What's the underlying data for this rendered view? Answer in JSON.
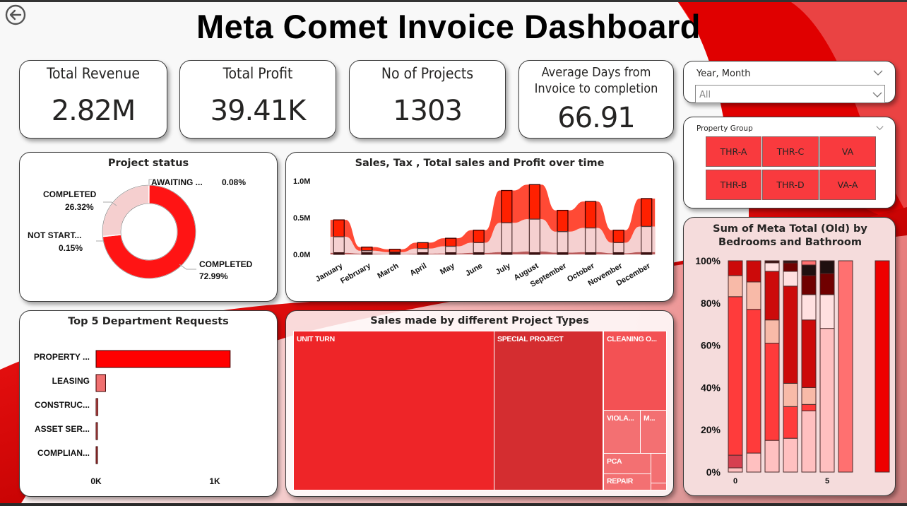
{
  "title": "Meta Comet Invoice Dashboard",
  "icons": {
    "back": "back-arrow-circle-icon",
    "chevron": "chevron-down-icon"
  },
  "colors": {
    "accent": "#ff0000",
    "dark_red": "#c00000",
    "light_pink": "#f5d0d0"
  },
  "kpis": [
    {
      "label": "Total Revenue",
      "value": "2.82M"
    },
    {
      "label": "Total Profit",
      "value": "39.41K"
    },
    {
      "label": "No of Projects",
      "value": "1303"
    },
    {
      "label_line1": "Average Days from",
      "label_line2": "Invoice to completion",
      "value": "66.91"
    }
  ],
  "slicers": {
    "year_month": {
      "title": "Year, Month",
      "value": "All"
    },
    "property_group": {
      "title": "Property Group",
      "tiles": [
        "THR-A",
        "THR-C",
        "VA",
        "THR-B",
        "THR-D",
        "VA-A"
      ]
    }
  },
  "chart_data": [
    {
      "type": "pie",
      "title": "Project status",
      "donut": true,
      "slices": [
        {
          "label": "COMPLETED",
          "value": 72.99,
          "display": "72.99%",
          "color": "#ff1414"
        },
        {
          "label": "NOT START...",
          "value": 0.15,
          "display": "0.15%",
          "color": "#c04848"
        },
        {
          "label": "COMPLETED",
          "value": 26.32,
          "display": "26.32%",
          "color": "#f5cfcf"
        },
        {
          "label": "AWAITING ...",
          "value": 0.08,
          "display": "0.08%",
          "color": "#b0b0b0"
        }
      ]
    },
    {
      "type": "bar",
      "title": "Sales, Tax , Total sales and Profit over time",
      "categories": [
        "January",
        "February",
        "March",
        "April",
        "May",
        "June",
        "July",
        "August",
        "September",
        "October",
        "November",
        "December"
      ],
      "yticks": [
        "0.0M",
        "0.5M",
        "1.0M"
      ],
      "ylim": [
        0,
        1.0
      ],
      "unit": "M",
      "series": [
        {
          "name": "Profit",
          "values": [
            0.01,
            0.005,
            0.003,
            0.005,
            0.006,
            0.01,
            0.015,
            0.02,
            0.012,
            0.015,
            0.008,
            0.015
          ],
          "color": "#b85a5a"
        },
        {
          "name": "Sales",
          "values": [
            0.24,
            0.05,
            0.03,
            0.08,
            0.11,
            0.16,
            0.43,
            0.48,
            0.31,
            0.36,
            0.16,
            0.38
          ],
          "color": "#f5d0d0"
        },
        {
          "name": "Total sales",
          "values": [
            0.47,
            0.1,
            0.07,
            0.16,
            0.22,
            0.33,
            0.87,
            0.95,
            0.6,
            0.72,
            0.33,
            0.76
          ],
          "color": "#ff4a35"
        },
        {
          "name": "Tax",
          "values": [
            0.02,
            0.01,
            0.005,
            0.01,
            0.01,
            0.015,
            0.04,
            0.04,
            0.025,
            0.03,
            0.015,
            0.03
          ],
          "color": "#ff2000"
        }
      ]
    },
    {
      "type": "bar",
      "orientation": "horizontal",
      "title": "Top 5 Department Requests",
      "categories": [
        "PROPERTY ...",
        "LEASING",
        "CONSTRUC...",
        "ASSET SER...",
        "COMPLIAN..."
      ],
      "values": [
        1130,
        80,
        15,
        10,
        5
      ],
      "colors": [
        "#ff0000",
        "#f07070",
        "#e06565",
        "#e06565",
        "#c04848"
      ],
      "xticks": [
        "0K",
        "1K"
      ],
      "xlim": [
        0,
        1250
      ]
    },
    {
      "type": "treemap",
      "title": "Sales made by different Project Types",
      "items": [
        {
          "label": "UNIT TURN",
          "color": "#ee2528"
        },
        {
          "label": "SPECIAL PROJECT",
          "color": "#d42d30"
        },
        {
          "label": "CLEANING O...",
          "color": "#f35154"
        },
        {
          "label": "VIOLA...",
          "color": "#f37072"
        },
        {
          "label": "M...",
          "color": "#f37072"
        },
        {
          "label": "PCA",
          "color": "#f37072"
        },
        {
          "label": "REPAIR",
          "color": "#f37072"
        }
      ]
    },
    {
      "type": "bar",
      "stacked": "100%",
      "title": "Sum of Meta Total (Old) by Bedrooms and Bathroom",
      "yticks": [
        "0%",
        "20%",
        "40%",
        "60%",
        "80%",
        "100%"
      ],
      "xticks": [
        "0",
        "5"
      ],
      "ylim": [
        0,
        100
      ],
      "columns": [
        {
          "x": 0,
          "segments": [
            [
              2,
              "#ffc0c0"
            ],
            [
              6,
              "#d64050"
            ],
            [
              75,
              "#ff3b3b"
            ],
            [
              10,
              "#f8baa8"
            ],
            [
              7,
              "#cc0a0a"
            ]
          ]
        },
        {
          "x": 1,
          "segments": [
            [
              9,
              "#ffc0c0"
            ],
            [
              68,
              "#ff3b3b"
            ],
            [
              13,
              "#f8baa8"
            ],
            [
              10,
              "#cc0a0a"
            ]
          ]
        },
        {
          "x": 2,
          "segments": [
            [
              15,
              "#ffc0c0"
            ],
            [
              46,
              "#ff3b3b"
            ],
            [
              11,
              "#f8baa8"
            ],
            [
              23,
              "#cc0a0a"
            ],
            [
              4,
              "#ffe0e0"
            ],
            [
              1,
              "#3a1010"
            ]
          ]
        },
        {
          "x": 3,
          "segments": [
            [
              16,
              "#ffc0c0"
            ],
            [
              15,
              "#ff3b3b"
            ],
            [
              11,
              "#f8baa8"
            ],
            [
              46,
              "#cc0a0a"
            ],
            [
              7,
              "#ffe0e0"
            ],
            [
              4,
              "#700000"
            ],
            [
              1,
              "#2a1010"
            ]
          ]
        },
        {
          "x": 4,
          "segments": [
            [
              29,
              "#ffc0c0"
            ],
            [
              3,
              "#ff3b3b"
            ],
            [
              8,
              "#f8baa8"
            ],
            [
              32,
              "#cc0a0a"
            ],
            [
              12,
              "#ffe0e0"
            ],
            [
              9,
              "#700000"
            ],
            [
              5,
              "#201010"
            ],
            [
              2,
              "#ff7070"
            ]
          ]
        },
        {
          "x": 5,
          "segments": [
            [
              68,
              "#ffc0c0"
            ],
            [
              16,
              "#ffe0e0"
            ],
            [
              10,
              "#700000"
            ],
            [
              6,
              "#201010"
            ]
          ]
        },
        {
          "x": 6,
          "segments": [
            [
              100,
              "#ff7070"
            ]
          ]
        },
        {
          "x": 8,
          "segments": [
            [
              100,
              "#ee0000"
            ]
          ]
        }
      ]
    }
  ]
}
